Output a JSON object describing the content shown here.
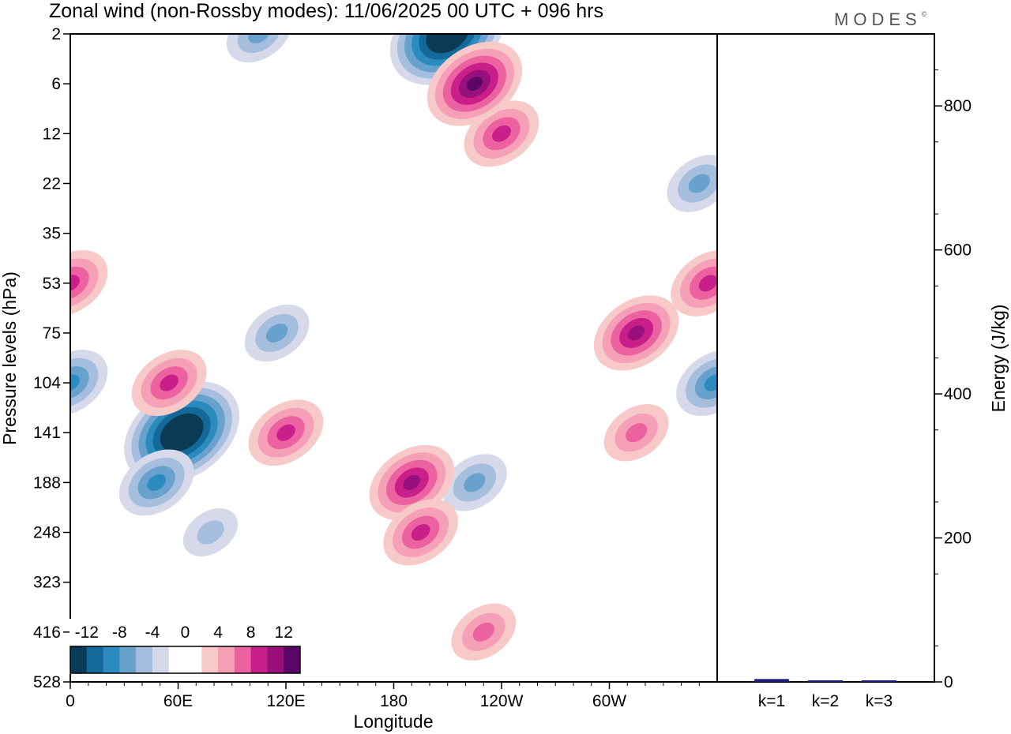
{
  "title": "Zonal wind (non-Rossby modes):  11/06/2025  00 UTC  + 096 hrs",
  "brand": "MODES",
  "brand_mark": "©",
  "chart_data": [
    {
      "type": "heatmap",
      "xlabel": "Longitude",
      "ylabel": "Pressure levels (hPa)",
      "x_ticks": [
        {
          "label": "0",
          "lon": 0
        },
        {
          "label": "60E",
          "lon": 60
        },
        {
          "label": "120E",
          "lon": 120
        },
        {
          "label": "180",
          "lon": 180
        },
        {
          "label": "120W",
          "lon": 240
        },
        {
          "label": "60W",
          "lon": 300
        }
      ],
      "x_range": [
        0,
        360
      ],
      "y_levels": [
        "2",
        "6",
        "12",
        "22",
        "35",
        "53",
        "75",
        "104",
        "141",
        "188",
        "248",
        "323",
        "416",
        "528"
      ],
      "colorbar": {
        "tick_labels": [
          "-12",
          "-8",
          "-4",
          "0",
          "4",
          "8",
          "12"
        ],
        "colors": [
          "#0b3a55",
          "#13699a",
          "#2b8bbf",
          "#67a1cc",
          "#a6bedd",
          "#d5d9ea",
          "#ffffff",
          "#ffffff",
          "#f8c9c9",
          "#f6a0b8",
          "#ec61a0",
          "#c91f8a",
          "#98107c",
          "#5b0566"
        ]
      },
      "features": [
        {
          "lon": 62,
          "level": 141,
          "value": -16
        },
        {
          "lon": 48,
          "level": 188,
          "value": -8
        },
        {
          "lon": 78,
          "level": 248,
          "value": -4
        },
        {
          "lon": 0,
          "level": 104,
          "value": -8
        },
        {
          "lon": 358,
          "level": 104,
          "value": -8
        },
        {
          "lon": 115,
          "level": 75,
          "value": -6
        },
        {
          "lon": 210,
          "level": 2,
          "value": -16
        },
        {
          "lon": 105,
          "level": 2,
          "value": -5
        },
        {
          "lon": 225,
          "level": 188,
          "value": -6
        },
        {
          "lon": 350,
          "level": 22,
          "value": -5
        },
        {
          "lon": 190,
          "level": 188,
          "value": 9
        },
        {
          "lon": 195,
          "level": 248,
          "value": 7
        },
        {
          "lon": 120,
          "level": 141,
          "value": 7
        },
        {
          "lon": 55,
          "level": 104,
          "value": 8
        },
        {
          "lon": 240,
          "level": 12,
          "value": 8
        },
        {
          "lon": 225,
          "level": 6,
          "value": 11
        },
        {
          "lon": 315,
          "level": 75,
          "value": 9
        },
        {
          "lon": 0,
          "level": 53,
          "value": 8
        },
        {
          "lon": 355,
          "level": 53,
          "value": 8
        },
        {
          "lon": 230,
          "level": 416,
          "value": 5
        },
        {
          "lon": 315,
          "level": 141,
          "value": 5
        }
      ]
    },
    {
      "type": "bar",
      "ylabel": "Energy (J/kg)",
      "categories": [
        "k=1",
        "k=2",
        "k=3"
      ],
      "values": [
        4,
        2,
        1
      ],
      "ylim": [
        0,
        900
      ],
      "y_ticks": [
        0,
        200,
        400,
        600,
        800
      ],
      "bar_color": "#1a1a7a"
    }
  ]
}
